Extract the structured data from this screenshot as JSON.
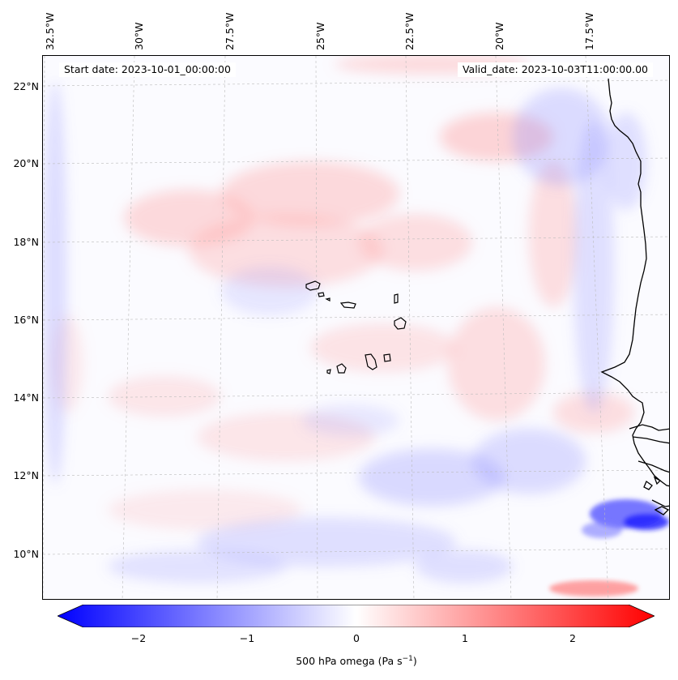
{
  "map": {
    "start_date": "Start date: 2023-10-01_00:00:00",
    "valid_date": "Valid_date: 2023-10-03T11:00:00.00",
    "lon_labels": [
      "32.5°W",
      "30°W",
      "27.5°W",
      "25°W",
      "22.5°W",
      "20°W",
      "17.5°W"
    ],
    "lat_labels": [
      "22°N",
      "20°N",
      "18°N",
      "16°N",
      "14°N",
      "12°N",
      "10°N"
    ],
    "colors": {
      "negative": "#0000ff",
      "zero": "#ffffff",
      "positive": "#ff0000",
      "coast": "#000000",
      "grid": "#bbbbbb"
    }
  },
  "colorbar": {
    "ticks": [
      "−2",
      "−1",
      "0",
      "1",
      "2"
    ],
    "label_main": "500 hPa omega (Pa s",
    "label_sup": "−1",
    "label_close": ")",
    "range": [
      -2.5,
      2.5
    ]
  }
}
